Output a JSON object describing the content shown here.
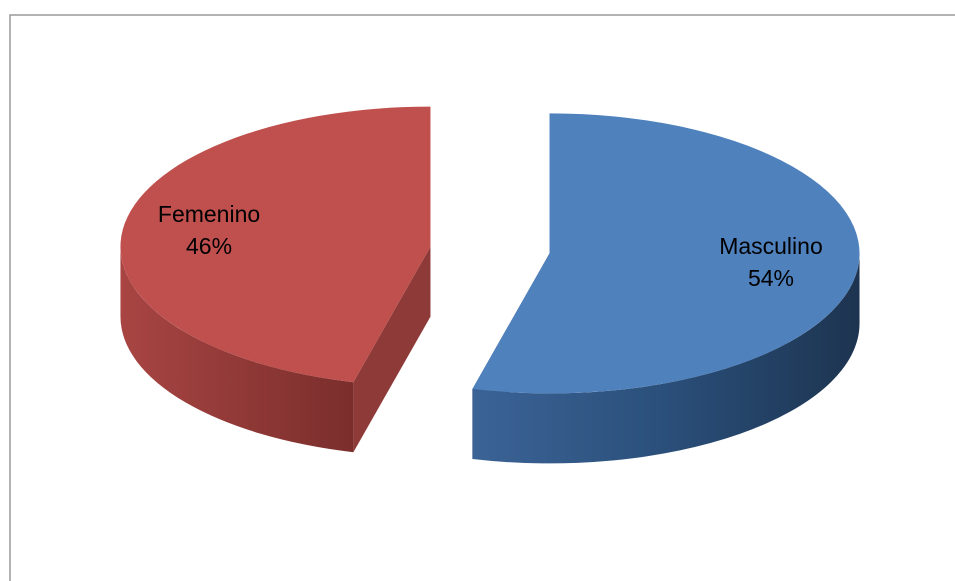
{
  "chart_data": {
    "type": "pie3d",
    "categories": [
      "Masculino",
      "Femenino"
    ],
    "values": [
      54,
      46
    ],
    "value_labels": [
      "54%",
      "46%"
    ],
    "colors": [
      "#4f81bd",
      "#c0504d"
    ],
    "side_colors": [
      "#274a72",
      "#8e3a38"
    ]
  }
}
